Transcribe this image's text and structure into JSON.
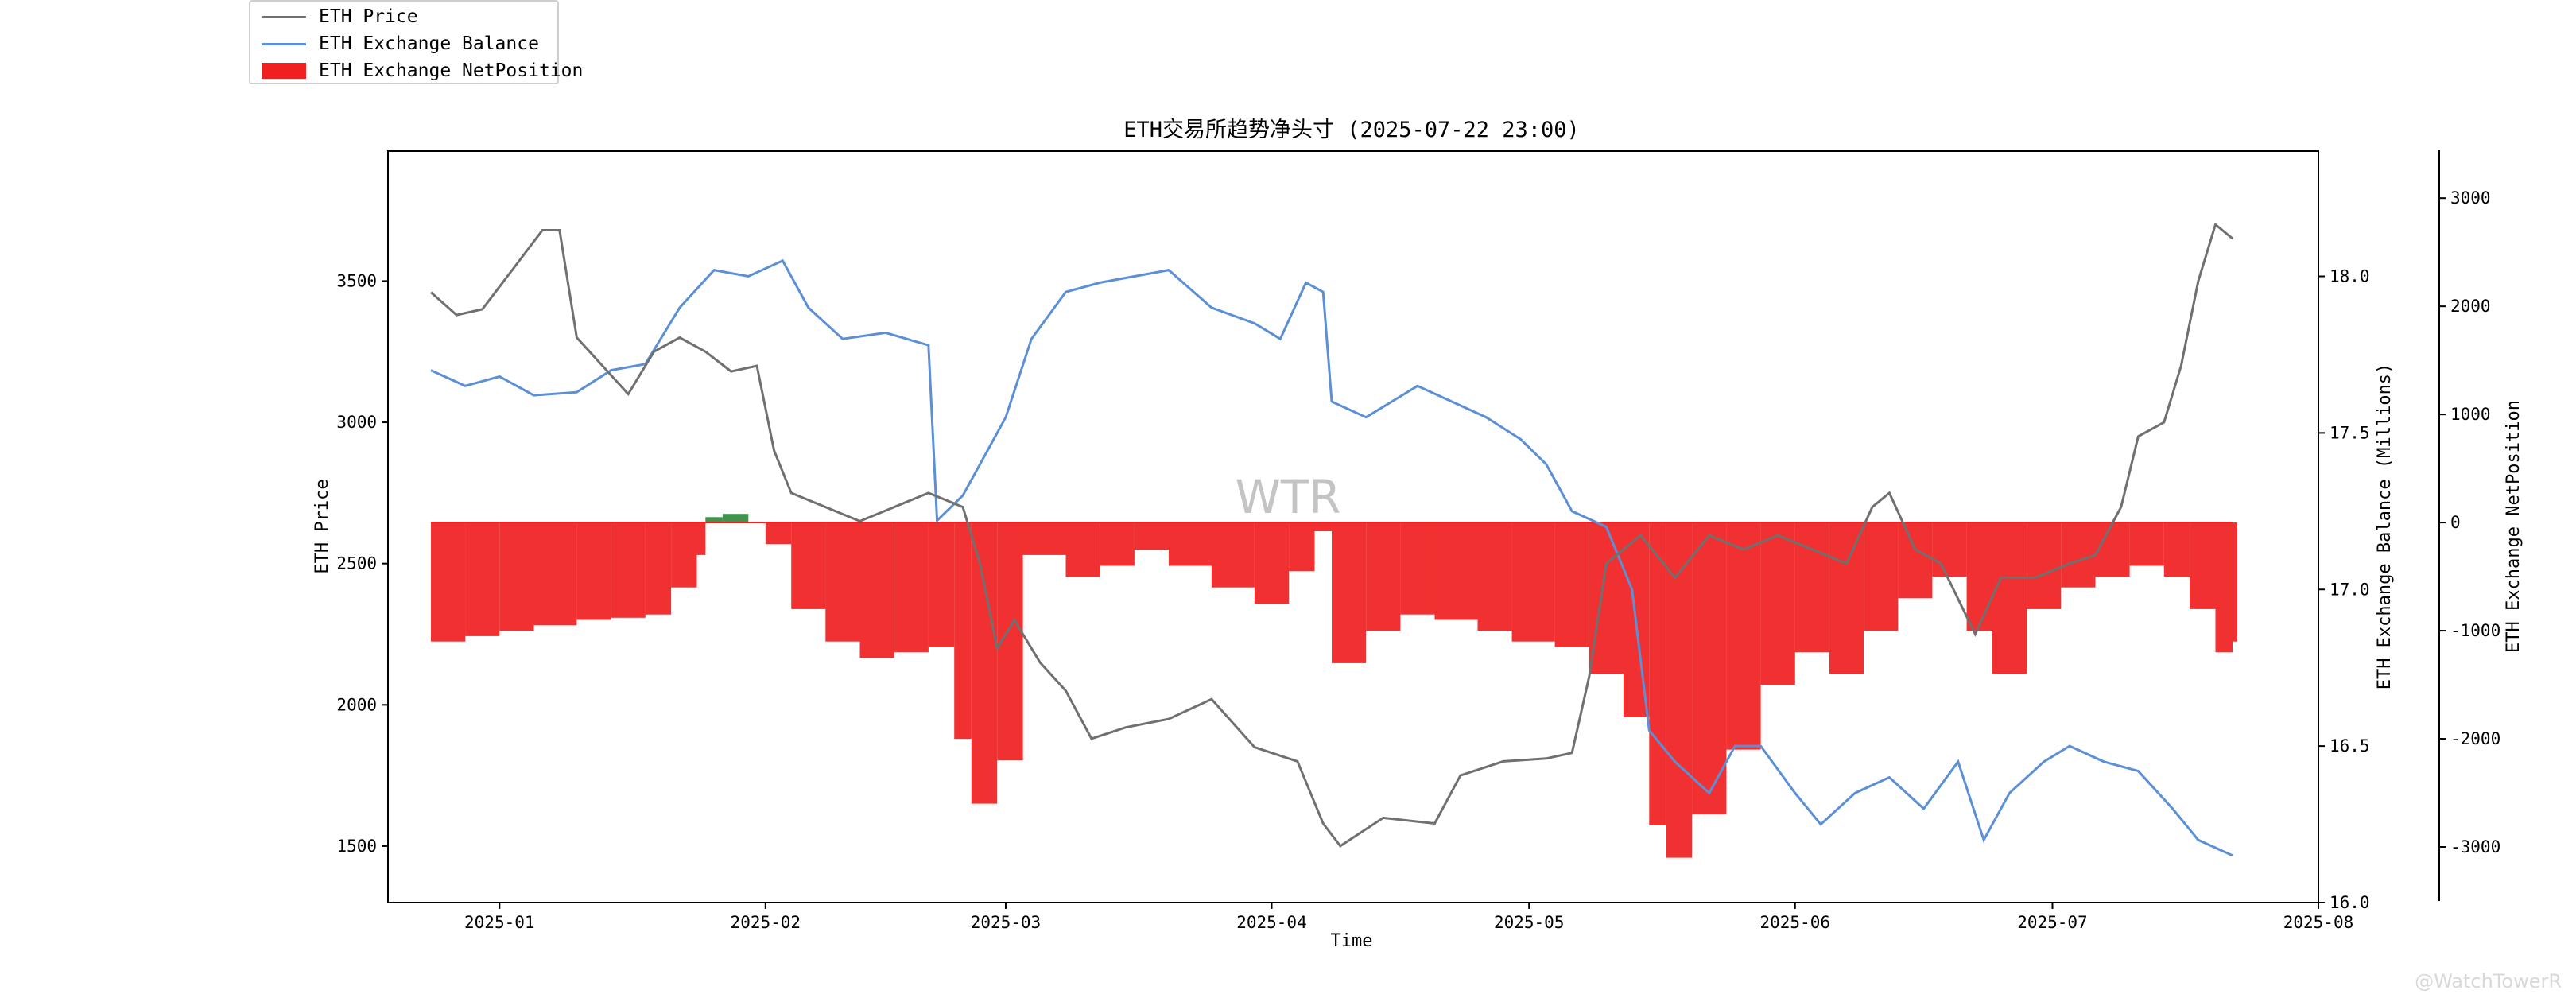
{
  "legend": {
    "items": [
      {
        "label": "ETH Price",
        "color": "#707070",
        "kind": "line"
      },
      {
        "label": "ETH Exchange Balance",
        "color": "#5b8fd6",
        "kind": "line"
      },
      {
        "label": "ETH Exchange NetPosition",
        "color": "#f02020",
        "kind": "bar"
      }
    ]
  },
  "watermark": "WTR",
  "credit": "@WatchTowerR",
  "chart_data": {
    "type": "line",
    "title": "ETH交易所趋势净头寸 (2025-07-22 23:00)",
    "xlabel": "Time",
    "ylabel_left": "ETH Price",
    "ylabel_right1": "ETH Exchange Balance (Millions)",
    "ylabel_right2": "ETH Exchange NetPosition",
    "x_range": [
      "2024-12-19",
      "2025-08-01"
    ],
    "x_ticks": [
      "2025-01",
      "2025-02",
      "2025-03",
      "2025-04",
      "2025-05",
      "2025-06",
      "2025-07",
      "2025-08"
    ],
    "y_left_range": [
      1300,
      3960
    ],
    "y_left_ticks": [
      1500,
      2000,
      2500,
      3000,
      3500
    ],
    "y_right1_range": [
      16.0,
      18.4
    ],
    "y_right1_ticks": [
      "16.0",
      "16.5",
      "17.0",
      "17.5",
      "18.0"
    ],
    "y_right2_range": [
      -3500,
      3450
    ],
    "y_right2_ticks": [
      -3000,
      -2000,
      -1000,
      0,
      1000,
      2000,
      3000
    ],
    "grid": false,
    "legend_position": "top-left outside",
    "series": [
      {
        "name": "ETH Price",
        "axis": "left",
        "points": [
          [
            "2024-12-24",
            3460
          ],
          [
            "2024-12-27",
            3380
          ],
          [
            "2024-12-30",
            3400
          ],
          [
            "2025-01-03",
            3560
          ],
          [
            "2025-01-06",
            3680
          ],
          [
            "2025-01-08",
            3680
          ],
          [
            "2025-01-10",
            3300
          ],
          [
            "2025-01-13",
            3200
          ],
          [
            "2025-01-16",
            3100
          ],
          [
            "2025-01-19",
            3250
          ],
          [
            "2025-01-22",
            3300
          ],
          [
            "2025-01-25",
            3250
          ],
          [
            "2025-01-28",
            3180
          ],
          [
            "2025-01-31",
            3200
          ],
          [
            "2025-02-02",
            2900
          ],
          [
            "2025-02-04",
            2750
          ],
          [
            "2025-02-08",
            2700
          ],
          [
            "2025-02-12",
            2650
          ],
          [
            "2025-02-16",
            2700
          ],
          [
            "2025-02-20",
            2750
          ],
          [
            "2025-02-24",
            2700
          ],
          [
            "2025-02-26",
            2500
          ],
          [
            "2025-02-28",
            2200
          ],
          [
            "2025-03-02",
            2300
          ],
          [
            "2025-03-05",
            2150
          ],
          [
            "2025-03-08",
            2050
          ],
          [
            "2025-03-11",
            1880
          ],
          [
            "2025-03-15",
            1920
          ],
          [
            "2025-03-20",
            1950
          ],
          [
            "2025-03-25",
            2020
          ],
          [
            "2025-03-30",
            1850
          ],
          [
            "2025-04-04",
            1800
          ],
          [
            "2025-04-07",
            1580
          ],
          [
            "2025-04-09",
            1500
          ],
          [
            "2025-04-14",
            1600
          ],
          [
            "2025-04-20",
            1580
          ],
          [
            "2025-04-23",
            1750
          ],
          [
            "2025-04-28",
            1800
          ],
          [
            "2025-05-03",
            1810
          ],
          [
            "2025-05-06",
            1830
          ],
          [
            "2025-05-08",
            2100
          ],
          [
            "2025-05-10",
            2500
          ],
          [
            "2025-05-14",
            2600
          ],
          [
            "2025-05-18",
            2450
          ],
          [
            "2025-05-22",
            2600
          ],
          [
            "2025-05-26",
            2550
          ],
          [
            "2025-05-30",
            2600
          ],
          [
            "2025-06-03",
            2550
          ],
          [
            "2025-06-07",
            2500
          ],
          [
            "2025-06-10",
            2700
          ],
          [
            "2025-06-12",
            2750
          ],
          [
            "2025-06-15",
            2550
          ],
          [
            "2025-06-18",
            2500
          ],
          [
            "2025-06-22",
            2250
          ],
          [
            "2025-06-25",
            2450
          ],
          [
            "2025-06-29",
            2450
          ],
          [
            "2025-07-03",
            2500
          ],
          [
            "2025-07-06",
            2530
          ],
          [
            "2025-07-09",
            2700
          ],
          [
            "2025-07-11",
            2950
          ],
          [
            "2025-07-14",
            3000
          ],
          [
            "2025-07-16",
            3200
          ],
          [
            "2025-07-18",
            3500
          ],
          [
            "2025-07-20",
            3700
          ],
          [
            "2025-07-22",
            3650
          ]
        ]
      },
      {
        "name": "ETH Exchange Balance",
        "axis": "right1",
        "unit": "Millions",
        "points": [
          [
            "2024-12-24",
            17.7
          ],
          [
            "2024-12-28",
            17.65
          ],
          [
            "2025-01-01",
            17.68
          ],
          [
            "2025-01-05",
            17.62
          ],
          [
            "2025-01-10",
            17.63
          ],
          [
            "2025-01-14",
            17.7
          ],
          [
            "2025-01-18",
            17.72
          ],
          [
            "2025-01-22",
            17.9
          ],
          [
            "2025-01-26",
            18.02
          ],
          [
            "2025-01-30",
            18.0
          ],
          [
            "2025-02-03",
            18.05
          ],
          [
            "2025-02-06",
            17.9
          ],
          [
            "2025-02-10",
            17.8
          ],
          [
            "2025-02-15",
            17.82
          ],
          [
            "2025-02-20",
            17.78
          ],
          [
            "2025-02-21",
            17.22
          ],
          [
            "2025-02-24",
            17.3
          ],
          [
            "2025-02-27",
            17.45
          ],
          [
            "2025-03-01",
            17.55
          ],
          [
            "2025-03-04",
            17.8
          ],
          [
            "2025-03-08",
            17.95
          ],
          [
            "2025-03-12",
            17.98
          ],
          [
            "2025-03-16",
            18.0
          ],
          [
            "2025-03-20",
            18.02
          ],
          [
            "2025-03-25",
            17.9
          ],
          [
            "2025-03-30",
            17.85
          ],
          [
            "2025-04-02",
            17.8
          ],
          [
            "2025-04-05",
            17.98
          ],
          [
            "2025-04-07",
            17.95
          ],
          [
            "2025-04-08",
            17.6
          ],
          [
            "2025-04-12",
            17.55
          ],
          [
            "2025-04-15",
            17.6
          ],
          [
            "2025-04-18",
            17.65
          ],
          [
            "2025-04-22",
            17.6
          ],
          [
            "2025-04-26",
            17.55
          ],
          [
            "2025-04-30",
            17.48
          ],
          [
            "2025-05-03",
            17.4
          ],
          [
            "2025-05-06",
            17.25
          ],
          [
            "2025-05-10",
            17.2
          ],
          [
            "2025-05-13",
            17.0
          ],
          [
            "2025-05-15",
            16.55
          ],
          [
            "2025-05-18",
            16.45
          ],
          [
            "2025-05-20",
            16.4
          ],
          [
            "2025-05-22",
            16.35
          ],
          [
            "2025-05-25",
            16.5
          ],
          [
            "2025-05-28",
            16.5
          ],
          [
            "2025-06-01",
            16.35
          ],
          [
            "2025-06-04",
            16.25
          ],
          [
            "2025-06-08",
            16.35
          ],
          [
            "2025-06-12",
            16.4
          ],
          [
            "2025-06-16",
            16.3
          ],
          [
            "2025-06-20",
            16.45
          ],
          [
            "2025-06-23",
            16.2
          ],
          [
            "2025-06-26",
            16.35
          ],
          [
            "2025-06-30",
            16.45
          ],
          [
            "2025-07-03",
            16.5
          ],
          [
            "2025-07-07",
            16.45
          ],
          [
            "2025-07-11",
            16.42
          ],
          [
            "2025-07-15",
            16.3
          ],
          [
            "2025-07-18",
            16.2
          ],
          [
            "2025-07-22",
            16.15
          ]
        ]
      },
      {
        "name": "ETH Exchange NetPosition",
        "axis": "right2",
        "type": "bar",
        "points": [
          [
            "2024-12-24",
            -1100
          ],
          [
            "2024-12-28",
            -1050
          ],
          [
            "2025-01-01",
            -1000
          ],
          [
            "2025-01-05",
            -950
          ],
          [
            "2025-01-10",
            -900
          ],
          [
            "2025-01-14",
            -880
          ],
          [
            "2025-01-18",
            -850
          ],
          [
            "2025-01-21",
            -600
          ],
          [
            "2025-01-24",
            -300
          ],
          [
            "2025-01-25",
            50
          ],
          [
            "2025-01-27",
            80
          ],
          [
            "2025-01-30",
            0
          ],
          [
            "2025-02-01",
            -200
          ],
          [
            "2025-02-04",
            -800
          ],
          [
            "2025-02-08",
            -1100
          ],
          [
            "2025-02-12",
            -1250
          ],
          [
            "2025-02-16",
            -1200
          ],
          [
            "2025-02-20",
            -1150
          ],
          [
            "2025-02-23",
            -2000
          ],
          [
            "2025-02-25",
            -2600
          ],
          [
            "2025-02-28",
            -2200
          ],
          [
            "2025-03-03",
            -300
          ],
          [
            "2025-03-08",
            -500
          ],
          [
            "2025-03-12",
            -400
          ],
          [
            "2025-03-16",
            -250
          ],
          [
            "2025-03-20",
            -400
          ],
          [
            "2025-03-25",
            -600
          ],
          [
            "2025-03-30",
            -750
          ],
          [
            "2025-04-03",
            -450
          ],
          [
            "2025-04-06",
            -80
          ],
          [
            "2025-04-08",
            -1300
          ],
          [
            "2025-04-12",
            -1000
          ],
          [
            "2025-04-16",
            -850
          ],
          [
            "2025-04-20",
            -900
          ],
          [
            "2025-04-25",
            -1000
          ],
          [
            "2025-04-29",
            -1100
          ],
          [
            "2025-05-04",
            -1150
          ],
          [
            "2025-05-08",
            -1400
          ],
          [
            "2025-05-12",
            -1800
          ],
          [
            "2025-05-15",
            -2800
          ],
          [
            "2025-05-17",
            -3100
          ],
          [
            "2025-05-20",
            -2700
          ],
          [
            "2025-05-24",
            -2100
          ],
          [
            "2025-05-28",
            -1500
          ],
          [
            "2025-06-01",
            -1200
          ],
          [
            "2025-06-05",
            -1400
          ],
          [
            "2025-06-09",
            -1000
          ],
          [
            "2025-06-13",
            -700
          ],
          [
            "2025-06-17",
            -500
          ],
          [
            "2025-06-21",
            -1000
          ],
          [
            "2025-06-24",
            -1400
          ],
          [
            "2025-06-28",
            -800
          ],
          [
            "2025-07-02",
            -600
          ],
          [
            "2025-07-06",
            -500
          ],
          [
            "2025-07-10",
            -400
          ],
          [
            "2025-07-14",
            -500
          ],
          [
            "2025-07-17",
            -800
          ],
          [
            "2025-07-20",
            -1200
          ],
          [
            "2025-07-22",
            -1100
          ]
        ]
      }
    ]
  }
}
